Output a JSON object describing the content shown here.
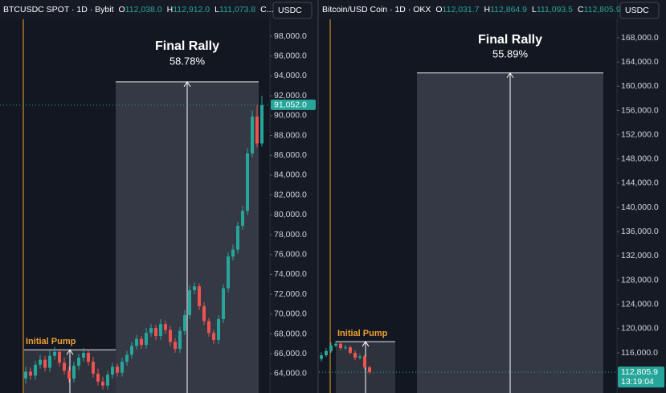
{
  "chart_data": [
    {
      "type": "candlestick",
      "symbol": "BTCUSDC SPOT · 1D · Bybit",
      "ohlc_header": [
        {
          "key": "O",
          "value": "112,038.0"
        },
        {
          "key": "H",
          "value": "112,912.0"
        },
        {
          "key": "L",
          "value": "111,073.8"
        },
        {
          "key": "C...",
          "value": ""
        }
      ],
      "currency": "USDC",
      "up_color": "#26a69a",
      "down_color": "#ef5350",
      "open": [
        63500,
        64200,
        63800,
        64900,
        65400,
        64600,
        65800,
        66200,
        65100,
        64300,
        63500,
        64800,
        65600,
        66100,
        65200,
        64000,
        63200,
        62800,
        63900,
        64700,
        64100,
        65200,
        65900,
        66800,
        67500,
        66900,
        68100,
        68600,
        67800,
        69000,
        68400,
        67200,
        66500,
        68300,
        69900,
        72400,
        72800,
        70800,
        69300,
        68100,
        67400,
        69500,
        72600,
        75800,
        76500,
        78900,
        80400,
        86200,
        89900,
        87200
      ],
      "high": [
        64700,
        64600,
        65300,
        65900,
        65800,
        66300,
        66700,
        66500,
        65600,
        64700,
        65200,
        66000,
        66600,
        66400,
        65700,
        64500,
        63700,
        64300,
        65100,
        65000,
        65600,
        66300,
        67200,
        67900,
        67800,
        68600,
        69000,
        68900,
        69500,
        69300,
        68800,
        67600,
        68700,
        70400,
        72900,
        73200,
        73100,
        71200,
        69600,
        68400,
        69900,
        73000,
        76200,
        77000,
        79300,
        80900,
        86700,
        90500,
        91000,
        92000
      ],
      "low": [
        63000,
        63400,
        63400,
        64500,
        64200,
        64200,
        65400,
        64700,
        63900,
        63100,
        63100,
        64400,
        65200,
        64800,
        63600,
        62800,
        62400,
        62400,
        63500,
        63700,
        63700,
        64800,
        65500,
        66400,
        66500,
        66500,
        67700,
        67400,
        67400,
        68000,
        66800,
        66100,
        66100,
        67900,
        69500,
        72000,
        70400,
        68900,
        67700,
        67000,
        67000,
        69100,
        72200,
        75400,
        76100,
        78500,
        80000,
        85800,
        86800,
        86900
      ],
      "close": [
        64200,
        63800,
        64900,
        65400,
        64600,
        65800,
        66200,
        65100,
        64300,
        63500,
        64800,
        65600,
        66100,
        65200,
        64000,
        63200,
        62800,
        63900,
        64700,
        64100,
        65200,
        65900,
        66800,
        67500,
        66900,
        68100,
        68600,
        67800,
        69000,
        68400,
        67200,
        66500,
        68300,
        69900,
        72400,
        72800,
        70800,
        69300,
        68100,
        67400,
        69500,
        72600,
        75800,
        76500,
        78900,
        80400,
        86200,
        89900,
        87200,
        91052
      ],
      "last_price_label": "91,052.0",
      "ylim": [
        62050,
        101650
      ],
      "yticks": [
        {
          "value": 64000,
          "label": "64,000.0"
        },
        {
          "value": 66000,
          "label": "66,000.0"
        },
        {
          "value": 68000,
          "label": "68,000.0"
        },
        {
          "value": 70000,
          "label": "70,000.0"
        },
        {
          "value": 72000,
          "label": "72,000.0"
        },
        {
          "value": 74000,
          "label": "74,000.0"
        },
        {
          "value": 76000,
          "label": "76,000.0"
        },
        {
          "value": 78000,
          "label": "78,000.0"
        },
        {
          "value": 80000,
          "label": "80,000.0"
        },
        {
          "value": 82000,
          "label": "82,000.0"
        },
        {
          "value": 84000,
          "label": "84,000.0"
        },
        {
          "value": 86000,
          "label": "86,000.0"
        },
        {
          "value": 88000,
          "label": "88,000.0"
        },
        {
          "value": 90000,
          "label": "90,000.0"
        },
        {
          "value": 92000,
          "label": "92,000.0"
        },
        {
          "value": 94000,
          "label": "94,000.0"
        },
        {
          "value": 96000,
          "label": "96,000.0"
        },
        {
          "value": 98000,
          "label": "98,000.0"
        }
      ],
      "annotations": [
        {
          "text": "Initial Pump",
          "top": 66400
        },
        {
          "text": "Final Rally",
          "change": "58.78%",
          "top": 93400
        }
      ]
    },
    {
      "type": "candlestick",
      "symbol": "Bitcoin/USD Coin · 1D · OKX",
      "ohlc_header": [
        {
          "key": "O",
          "value": "112,031.7"
        },
        {
          "key": "H",
          "value": "112,864.9"
        },
        {
          "key": "L",
          "value": "111,093.5"
        },
        {
          "key": "C",
          "value": "112,805.9..."
        }
      ],
      "currency": "USDC",
      "up_color": "#26a69a",
      "down_color": "#ef5350",
      "open": [
        115000,
        115600,
        116300,
        117200,
        117500,
        116800,
        116900,
        116000,
        115200,
        115400,
        113600
      ],
      "high": [
        116100,
        116800,
        117700,
        118000,
        117700,
        117300,
        117200,
        116400,
        115800,
        115700,
        113900
      ],
      "low": [
        114600,
        115300,
        116000,
        116900,
        116400,
        116500,
        115700,
        114800,
        114900,
        113200,
        112500
      ],
      "close": [
        115600,
        116300,
        117200,
        117500,
        116800,
        116900,
        116000,
        115200,
        115400,
        113600,
        112805.9
      ],
      "last_price_label": "112,805.9",
      "countdown": "13:19:04",
      "ylim": [
        109370,
        174240
      ],
      "yticks": [
        {
          "value": 116000,
          "label": "116,000.0"
        },
        {
          "value": 120000,
          "label": "120,000.0"
        },
        {
          "value": 124000,
          "label": "124,000.0"
        },
        {
          "value": 128000,
          "label": "128,000.0"
        },
        {
          "value": 132000,
          "label": "132,000.0"
        },
        {
          "value": 136000,
          "label": "136,000.0"
        },
        {
          "value": 140000,
          "label": "140,000.0"
        },
        {
          "value": 144000,
          "label": "144,000.0"
        },
        {
          "value": 148000,
          "label": "148,000.0"
        },
        {
          "value": 152000,
          "label": "152,000.0"
        },
        {
          "value": 156000,
          "label": "156,000.0"
        },
        {
          "value": 160000,
          "label": "160,000.0"
        },
        {
          "value": 164000,
          "label": "164,000.0"
        },
        {
          "value": 168000,
          "label": "168,000.0"
        }
      ],
      "annotations": [
        {
          "text": "Initial Pump",
          "top": 117850
        },
        {
          "text": "Final Rally",
          "change": "55.89%",
          "top": 162200
        }
      ]
    }
  ]
}
